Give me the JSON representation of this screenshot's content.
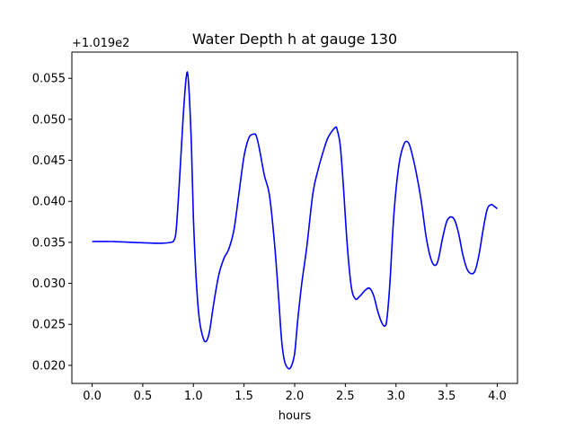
{
  "chart_data": {
    "type": "line",
    "title": "Water Depth h at gauge 130",
    "xlabel": "hours",
    "ylabel": "",
    "offset_label": "+1.019e2",
    "xlim": [
      -0.2,
      4.2
    ],
    "ylim": [
      0.0178,
      0.0582
    ],
    "x_ticks": [
      0.0,
      0.5,
      1.0,
      1.5,
      2.0,
      2.5,
      3.0,
      3.5,
      4.0
    ],
    "x_tick_labels": [
      "0.0",
      "0.5",
      "1.0",
      "1.5",
      "2.0",
      "2.5",
      "3.0",
      "3.5",
      "4.0"
    ],
    "y_ticks": [
      0.02,
      0.025,
      0.03,
      0.035,
      0.04,
      0.045,
      0.05,
      0.055
    ],
    "y_tick_labels": [
      "0.020",
      "0.025",
      "0.030",
      "0.035",
      "0.040",
      "0.045",
      "0.050",
      "0.055"
    ],
    "grid": false,
    "series": [
      {
        "color": "#0000ff",
        "x": [
          0.0,
          0.2,
          0.4,
          0.6,
          0.7,
          0.78,
          0.81,
          0.83,
          0.86,
          0.9,
          0.93,
          0.95,
          0.98,
          1.0,
          1.03,
          1.06,
          1.1,
          1.13,
          1.16,
          1.2,
          1.25,
          1.3,
          1.35,
          1.4,
          1.45,
          1.5,
          1.55,
          1.6,
          1.62,
          1.65,
          1.7,
          1.75,
          1.8,
          1.84,
          1.87,
          1.9,
          1.94,
          1.97,
          2.0,
          2.03,
          2.07,
          2.12,
          2.18,
          2.23,
          2.28,
          2.33,
          2.4,
          2.42,
          2.45,
          2.48,
          2.52,
          2.56,
          2.6,
          2.64,
          2.7,
          2.74,
          2.78,
          2.82,
          2.86,
          2.89,
          2.91,
          2.94,
          2.98,
          3.03,
          3.08,
          3.12,
          3.15,
          3.2,
          3.25,
          3.3,
          3.35,
          3.39,
          3.42,
          3.46,
          3.5,
          3.54,
          3.58,
          3.62,
          3.66,
          3.7,
          3.74,
          3.78,
          3.82,
          3.86,
          3.9,
          3.94,
          3.97,
          4.0
        ],
        "y": [
          0.0351,
          0.0351,
          0.035,
          0.0349,
          0.0349,
          0.035,
          0.0353,
          0.0365,
          0.042,
          0.0505,
          0.0552,
          0.0548,
          0.047,
          0.038,
          0.03,
          0.0255,
          0.0232,
          0.023,
          0.0242,
          0.0275,
          0.031,
          0.033,
          0.0342,
          0.0365,
          0.041,
          0.0455,
          0.0478,
          0.0482,
          0.048,
          0.0465,
          0.0432,
          0.0408,
          0.035,
          0.0285,
          0.0232,
          0.0205,
          0.0196,
          0.02,
          0.0215,
          0.0255,
          0.03,
          0.0345,
          0.041,
          0.0438,
          0.046,
          0.0478,
          0.049,
          0.0487,
          0.0468,
          0.042,
          0.0345,
          0.0295,
          0.0281,
          0.0284,
          0.0292,
          0.0294,
          0.0285,
          0.0266,
          0.0252,
          0.0248,
          0.0256,
          0.03,
          0.0385,
          0.0445,
          0.047,
          0.0472,
          0.0462,
          0.0435,
          0.04,
          0.0355,
          0.0328,
          0.0322,
          0.033,
          0.0355,
          0.0375,
          0.0381,
          0.0377,
          0.036,
          0.0335,
          0.0318,
          0.0312,
          0.0315,
          0.0335,
          0.0365,
          0.039,
          0.0396,
          0.0394,
          0.0391
        ]
      }
    ]
  }
}
